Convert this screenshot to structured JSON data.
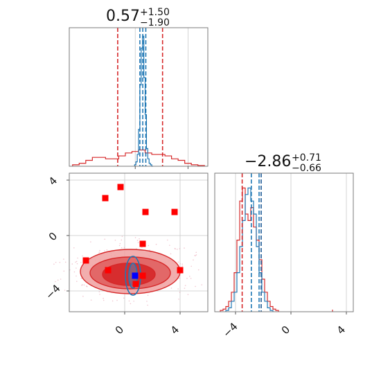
{
  "colors": {
    "red": "#d62728",
    "blue": "#1f77b4",
    "point_red": "#ff0000",
    "point_blue": "#0000ff",
    "fill_dark": "#d62728",
    "fill_light": "#f0a0a0",
    "fill_mid": "#e06060"
  },
  "chart_data": [
    {
      "type": "histogram",
      "panel": "top-left",
      "title": {
        "value": "0.57",
        "plus": "+1.50",
        "minus": "−1.90"
      },
      "xlim": [
        -5,
        5.5
      ],
      "quantile_lines_red": [
        -1.33,
        2.07
      ],
      "quantile_lines_blue": [
        0.35,
        0.57,
        0.8
      ],
      "series": [
        {
          "name": "",
          "color": "red",
          "x": [
            -4.5,
            -4.0,
            -3.5,
            -3.0,
            -2.5,
            -2.0,
            -1.5,
            -1.0,
            -0.5,
            0.0,
            0.5,
            1.0,
            1.5,
            2.0,
            2.5,
            3.0,
            3.5,
            4.0,
            4.5,
            5.0
          ],
          "y": [
            0.01,
            0.02,
            0.04,
            0.06,
            0.06,
            0.05,
            0.05,
            0.07,
            0.09,
            0.1,
            0.11,
            0.09,
            0.08,
            0.08,
            0.07,
            0.05,
            0.04,
            0.02,
            0.01,
            0.005
          ]
        },
        {
          "name": "",
          "color": "blue",
          "x": [
            0.0,
            0.1,
            0.2,
            0.3,
            0.4,
            0.5,
            0.6,
            0.7,
            0.8,
            0.9,
            1.0,
            1.1,
            1.2,
            1.3
          ],
          "y": [
            0.01,
            0.03,
            0.08,
            0.25,
            0.55,
            0.8,
            0.88,
            0.6,
            0.35,
            0.12,
            0.05,
            0.02,
            0.01,
            0.0
          ]
        }
      ]
    },
    {
      "type": "scatter",
      "panel": "bottom-left",
      "xlim": [
        -4,
        6
      ],
      "ylim": [
        -5.5,
        4.5
      ],
      "xticks": [
        "0",
        "4"
      ],
      "yticks": [
        "4",
        "0",
        "−4"
      ],
      "contours_red": [
        {
          "level": "outer",
          "cx": 0.4,
          "cy": -2.6,
          "rx": 3.6,
          "ry": 1.6
        },
        {
          "level": "mid",
          "cx": 0.4,
          "cy": -2.7,
          "rx": 2.9,
          "ry": 1.15
        },
        {
          "level": "inner",
          "cx": 0.3,
          "cy": -2.8,
          "rx": 1.9,
          "ry": 0.8
        }
      ],
      "contours_blue": [
        {
          "level": "outer",
          "cx": 0.6,
          "cy": -2.9,
          "rx": 0.55,
          "ry": 1.4
        },
        {
          "level": "inner",
          "cx": 0.6,
          "cy": -2.9,
          "rx": 0.3,
          "ry": 0.9
        }
      ],
      "points_red": [
        {
          "x": -0.3,
          "y": 3.5
        },
        {
          "x": -1.4,
          "y": 2.7
        },
        {
          "x": 1.5,
          "y": 1.7
        },
        {
          "x": 3.6,
          "y": 1.7
        },
        {
          "x": 1.3,
          "y": -0.6
        },
        {
          "x": -2.8,
          "y": -1.8
        },
        {
          "x": -1.2,
          "y": -2.5
        },
        {
          "x": 1.3,
          "y": -2.9
        },
        {
          "x": 4.0,
          "y": -2.5
        },
        {
          "x": 0.8,
          "y": -3.5
        }
      ],
      "points_blue": [
        {
          "x": 0.75,
          "y": -2.9
        }
      ]
    },
    {
      "type": "histogram",
      "panel": "bottom-right",
      "title": {
        "value": "−2.86",
        "plus": "+0.71",
        "minus": "−0.66"
      },
      "xlim": [
        -5.5,
        4.5
      ],
      "xticks": [
        "−4",
        "0",
        "4"
      ],
      "quantile_lines_red": [
        -3.52,
        -2.15
      ],
      "quantile_lines_blue": [
        -2.86,
        -2.3,
        -2.15
      ],
      "series": [
        {
          "name": "",
          "color": "red",
          "x": [
            -5.0,
            -4.8,
            -4.6,
            -4.4,
            -4.2,
            -4.0,
            -3.8,
            -3.6,
            -3.4,
            -3.2,
            -3.0,
            -2.8,
            -2.6,
            -2.4,
            -2.2,
            -2.0,
            -1.8,
            -1.6,
            -1.4,
            -1.2,
            -1.0
          ],
          "y": [
            0.01,
            0.02,
            0.04,
            0.08,
            0.15,
            0.3,
            0.55,
            0.85,
            0.95,
            0.75,
            0.7,
            0.8,
            0.65,
            0.55,
            0.4,
            0.25,
            0.15,
            0.08,
            0.04,
            0.02,
            0.01
          ]
        },
        {
          "name": "",
          "color": "blue",
          "x": [
            -4.6,
            -4.4,
            -4.2,
            -4.0,
            -3.8,
            -3.6,
            -3.4,
            -3.2,
            -3.0,
            -2.8,
            -2.6,
            -2.4,
            -2.2,
            -2.0,
            -1.8,
            -1.6,
            -1.4
          ],
          "y": [
            0.01,
            0.03,
            0.08,
            0.15,
            0.3,
            0.5,
            0.7,
            0.9,
            0.95,
            0.85,
            0.75,
            0.5,
            0.3,
            0.15,
            0.08,
            0.03,
            0.01
          ]
        }
      ]
    }
  ]
}
